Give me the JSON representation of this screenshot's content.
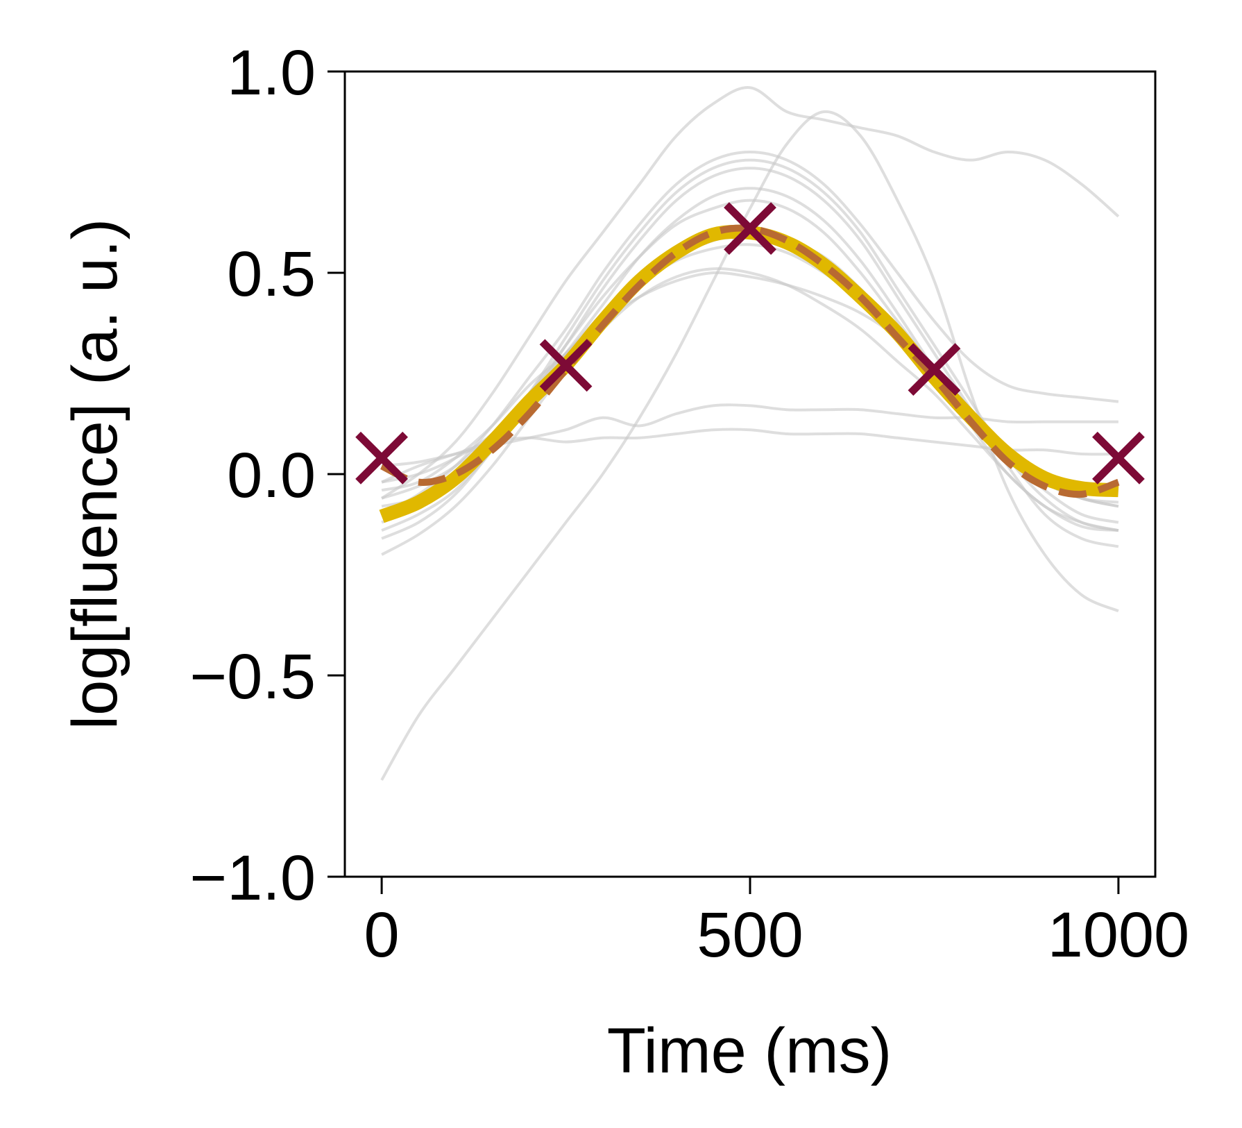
{
  "chart_data": {
    "type": "line",
    "title": "",
    "xlabel": "Time (ms)",
    "ylabel": "log[fluence] (a. u.)",
    "xlim": [
      -50,
      1050
    ],
    "ylim": [
      -1.0,
      1.0
    ],
    "xticks": [
      0,
      500,
      1000
    ],
    "xtick_labels": [
      "0",
      "500",
      "1000"
    ],
    "yticks": [
      -1.0,
      -0.5,
      0.0,
      0.5,
      1.0
    ],
    "ytick_labels": [
      "−1.0",
      "−0.5",
      "0.0",
      "0.5",
      "1.0"
    ],
    "grid": false,
    "legend": "none",
    "colors": {
      "background_traces": "#c8c8c8",
      "smooth_fit": "#e0b800",
      "dashed_fit": "#b86a32",
      "markers": "#7d0a36",
      "axes": "#000000"
    },
    "background_traces": [
      {
        "x": [
          0,
          50,
          100,
          150,
          200,
          250,
          300,
          350,
          400,
          450,
          500,
          550,
          600,
          650,
          700,
          750,
          800,
          850,
          900,
          950,
          1000
        ],
        "y": [
          0.02,
          0.03,
          0.05,
          0.07,
          0.09,
          0.11,
          0.14,
          0.12,
          0.15,
          0.17,
          0.17,
          0.16,
          0.16,
          0.16,
          0.15,
          0.14,
          0.14,
          0.13,
          0.13,
          0.13,
          0.13
        ]
      },
      {
        "x": [
          0,
          50,
          100,
          150,
          200,
          250,
          300,
          350,
          400,
          450,
          500,
          550,
          600,
          650,
          700,
          750,
          800,
          850,
          900,
          950,
          1000
        ],
        "y": [
          -0.02,
          0.02,
          0.05,
          0.08,
          0.09,
          0.08,
          0.09,
          0.09,
          0.1,
          0.11,
          0.11,
          0.1,
          0.1,
          0.1,
          0.09,
          0.08,
          0.07,
          0.06,
          0.06,
          0.05,
          0.05
        ]
      },
      {
        "x": [
          0,
          50,
          100,
          150,
          200,
          250,
          300,
          350,
          400,
          450,
          500,
          550,
          600,
          650,
          700,
          750,
          800,
          850,
          900,
          950,
          1000
        ],
        "y": [
          -0.76,
          -0.6,
          -0.48,
          -0.36,
          -0.24,
          -0.12,
          0.0,
          0.14,
          0.3,
          0.48,
          0.66,
          0.82,
          0.9,
          0.84,
          0.68,
          0.48,
          0.2,
          -0.04,
          -0.2,
          -0.3,
          -0.34
        ]
      },
      {
        "x": [
          0,
          50,
          100,
          150,
          200,
          250,
          300,
          350,
          400,
          450,
          500,
          550,
          600,
          650,
          700,
          750,
          800,
          850,
          900,
          950,
          1000
        ],
        "y": [
          -0.06,
          0.0,
          0.08,
          0.2,
          0.34,
          0.48,
          0.6,
          0.72,
          0.84,
          0.92,
          0.96,
          0.9,
          0.88,
          0.86,
          0.84,
          0.8,
          0.78,
          0.8,
          0.78,
          0.72,
          0.64
        ]
      },
      {
        "x": [
          0,
          50,
          100,
          150,
          200,
          250,
          300,
          350,
          400,
          450,
          500,
          550,
          600,
          650,
          700,
          750,
          800,
          850,
          900,
          950,
          1000
        ],
        "y": [
          -0.12,
          -0.08,
          -0.02,
          0.08,
          0.2,
          0.34,
          0.48,
          0.6,
          0.7,
          0.76,
          0.78,
          0.76,
          0.7,
          0.6,
          0.46,
          0.32,
          0.18,
          0.04,
          -0.06,
          -0.12,
          -0.14
        ]
      },
      {
        "x": [
          0,
          50,
          100,
          150,
          200,
          250,
          300,
          350,
          400,
          450,
          500,
          550,
          600,
          650,
          700,
          750,
          800,
          850,
          900,
          950,
          1000
        ],
        "y": [
          -0.14,
          -0.1,
          -0.04,
          0.06,
          0.18,
          0.3,
          0.42,
          0.54,
          0.63,
          0.69,
          0.71,
          0.69,
          0.63,
          0.53,
          0.4,
          0.26,
          0.12,
          0.0,
          -0.08,
          -0.13,
          -0.14
        ]
      },
      {
        "x": [
          0,
          50,
          100,
          150,
          200,
          250,
          300,
          350,
          400,
          450,
          500,
          550,
          600,
          650,
          700,
          750,
          800,
          850,
          900,
          950,
          1000
        ],
        "y": [
          -0.04,
          -0.02,
          0.04,
          0.12,
          0.22,
          0.3,
          0.4,
          0.48,
          0.54,
          0.58,
          0.6,
          0.58,
          0.54,
          0.46,
          0.36,
          0.26,
          0.16,
          0.06,
          -0.02,
          -0.06,
          -0.08
        ]
      },
      {
        "x": [
          0,
          50,
          100,
          150,
          200,
          250,
          300,
          350,
          400,
          450,
          500,
          550,
          600,
          650,
          700,
          750,
          800,
          850,
          900,
          950,
          1000
        ],
        "y": [
          -0.2,
          -0.15,
          -0.08,
          0.02,
          0.14,
          0.26,
          0.36,
          0.44,
          0.49,
          0.51,
          0.5,
          0.47,
          0.42,
          0.36,
          0.28,
          0.2,
          0.1,
          0.0,
          -0.08,
          -0.12,
          -0.14
        ]
      },
      {
        "x": [
          0,
          50,
          100,
          150,
          200,
          250,
          300,
          350,
          400,
          450,
          500,
          550,
          600,
          650,
          700,
          750,
          800,
          850,
          900,
          950,
          1000
        ],
        "y": [
          -0.08,
          -0.06,
          -0.01,
          0.08,
          0.18,
          0.28,
          0.38,
          0.47,
          0.53,
          0.56,
          0.57,
          0.55,
          0.5,
          0.43,
          0.34,
          0.24,
          0.14,
          0.06,
          -0.02,
          -0.06,
          -0.08
        ]
      },
      {
        "x": [
          0,
          50,
          100,
          150,
          200,
          250,
          300,
          350,
          400,
          450,
          500,
          550,
          600,
          650,
          700,
          750,
          800,
          850,
          900,
          950,
          1000
        ],
        "y": [
          -0.1,
          -0.05,
          0.02,
          0.12,
          0.24,
          0.36,
          0.5,
          0.62,
          0.72,
          0.78,
          0.8,
          0.78,
          0.72,
          0.62,
          0.5,
          0.38,
          0.28,
          0.22,
          0.2,
          0.19,
          0.18
        ]
      },
      {
        "x": [
          0,
          50,
          100,
          150,
          200,
          250,
          300,
          350,
          400,
          450,
          500,
          550,
          600,
          650,
          700,
          750,
          800,
          850,
          900,
          950,
          1000
        ],
        "y": [
          -0.02,
          0.0,
          0.04,
          0.1,
          0.2,
          0.32,
          0.44,
          0.54,
          0.62,
          0.66,
          0.68,
          0.66,
          0.6,
          0.5,
          0.38,
          0.26,
          0.14,
          0.04,
          -0.04,
          -0.1,
          -0.12
        ]
      },
      {
        "x": [
          0,
          50,
          100,
          150,
          200,
          250,
          300,
          350,
          400,
          450,
          500,
          550,
          600,
          650,
          700,
          750,
          800,
          850,
          900,
          950,
          1000
        ],
        "y": [
          -0.16,
          -0.12,
          -0.05,
          0.06,
          0.18,
          0.32,
          0.46,
          0.58,
          0.68,
          0.74,
          0.76,
          0.74,
          0.68,
          0.58,
          0.44,
          0.3,
          0.16,
          0.02,
          -0.1,
          -0.16,
          -0.18
        ]
      },
      {
        "x": [
          0,
          50,
          100,
          150,
          200,
          250,
          300,
          350,
          400,
          450,
          500,
          550,
          600,
          650,
          700,
          750,
          800,
          850,
          900,
          950,
          1000
        ],
        "y": [
          -0.06,
          -0.03,
          0.02,
          0.1,
          0.2,
          0.3,
          0.38,
          0.44,
          0.48,
          0.5,
          0.49,
          0.47,
          0.44,
          0.4,
          0.34,
          0.26,
          0.16,
          0.06,
          -0.02,
          -0.06,
          -0.07
        ]
      }
    ],
    "smooth_fit": {
      "x": [
        0,
        50,
        100,
        150,
        200,
        250,
        300,
        350,
        400,
        450,
        500,
        550,
        600,
        650,
        700,
        750,
        800,
        850,
        900,
        950,
        1000
      ],
      "y": [
        -0.105,
        -0.07,
        -0.01,
        0.08,
        0.18,
        0.27,
        0.38,
        0.48,
        0.55,
        0.595,
        0.6,
        0.575,
        0.52,
        0.44,
        0.35,
        0.24,
        0.14,
        0.05,
        -0.01,
        -0.035,
        -0.04
      ]
    },
    "dashed_fit": {
      "x": [
        0,
        50,
        100,
        150,
        200,
        250,
        300,
        350,
        400,
        450,
        500,
        550,
        600,
        650,
        700,
        750,
        800,
        850,
        900,
        950,
        1000
      ],
      "y": [
        0.02,
        -0.02,
        0.0,
        0.06,
        0.15,
        0.26,
        0.37,
        0.47,
        0.55,
        0.6,
        0.61,
        0.58,
        0.52,
        0.44,
        0.34,
        0.24,
        0.13,
        0.03,
        -0.03,
        -0.05,
        -0.02
      ]
    },
    "markers": {
      "x": [
        0,
        250,
        500,
        750,
        1000
      ],
      "y": [
        0.04,
        0.27,
        0.61,
        0.26,
        0.04
      ]
    }
  }
}
